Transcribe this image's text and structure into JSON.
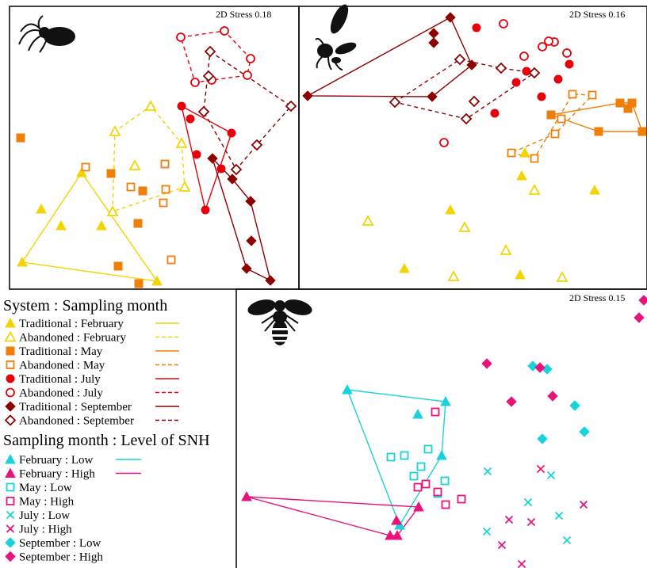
{
  "colors": {
    "february_system": "#F2D500",
    "may_system": "#F07F0A",
    "july_system": "#E8000B",
    "september_system": "#8B0000",
    "low_snh": "#19D2DC",
    "high_snh": "#E8147C"
  },
  "icons": [
    "spider-icon",
    "wasp-icon",
    "bee-icon"
  ],
  "chart_data": [
    {
      "type": "scatter",
      "panel": "spiders",
      "annotation": "2D Stress 0.18",
      "series": [
        {
          "key": "trad_feb",
          "points": [
            [
              28,
              331
            ],
            [
              52,
              264
            ],
            [
              77,
              285
            ],
            [
              103,
              218
            ],
            [
              128,
              285
            ],
            [
              198,
              355
            ]
          ],
          "hull": [
            [
              28,
              331
            ],
            [
              103,
              218
            ],
            [
              198,
              355
            ]
          ]
        },
        {
          "key": "aband_feb",
          "points": [
            [
              142,
              267
            ],
            [
              145,
              166
            ],
            [
              170,
              209
            ],
            [
              190,
              134
            ],
            [
              229,
              181
            ],
            [
              233,
              236
            ]
          ],
          "hull": [
            [
              142,
              267
            ],
            [
              145,
              166
            ],
            [
              190,
              134
            ],
            [
              229,
              181
            ],
            [
              233,
              236
            ]
          ]
        },
        {
          "key": "trad_may",
          "points": [
            [
              26,
              174
            ],
            [
              140,
              219
            ],
            [
              180,
              241
            ],
            [
              174,
              282
            ],
            [
              149,
              336
            ],
            [
              175,
              358
            ]
          ],
          "hull": []
        },
        {
          "key": "aband_may",
          "points": [
            [
              108,
              211
            ],
            [
              165,
              236
            ],
            [
              208,
              207
            ],
            [
              209,
              239
            ],
            [
              206,
              256
            ],
            [
              216,
              328
            ]
          ],
          "hull": []
        },
        {
          "key": "trad_jul",
          "points": [
            [
              229,
              134
            ],
            [
              240,
              150
            ],
            [
              248,
              195
            ],
            [
              259,
              265
            ],
            [
              279,
              213
            ],
            [
              292,
              168
            ]
          ],
          "hull": [
            [
              229,
              134
            ],
            [
              259,
              265
            ],
            [
              292,
              168
            ]
          ]
        },
        {
          "key": "aband_jul",
          "points": [
            [
              228,
              47
            ],
            [
              283,
              39
            ],
            [
              316,
              74
            ],
            [
              312,
              95
            ],
            [
              246,
              104
            ],
            [
              267,
              101
            ]
          ],
          "hull": [
            [
              228,
              47
            ],
            [
              283,
              39
            ],
            [
              316,
              74
            ],
            [
              312,
              95
            ],
            [
              246,
              104
            ]
          ]
        },
        {
          "key": "trad_sep",
          "points": [
            [
              268,
              200
            ],
            [
              293,
              226
            ],
            [
              316,
              254
            ],
            [
              317,
              304
            ],
            [
              311,
              339
            ],
            [
              341,
              354
            ]
          ],
          "hull": [
            [
              268,
              200
            ],
            [
              293,
              226
            ],
            [
              316,
              254
            ],
            [
              341,
              354
            ],
            [
              311,
              339
            ]
          ]
        },
        {
          "key": "aband_sep",
          "points": [
            [
              265,
              65
            ],
            [
              367,
              134
            ],
            [
              324,
              183
            ],
            [
              298,
              214
            ],
            [
              257,
              141
            ],
            [
              263,
              96
            ]
          ],
          "hull": [
            [
              265,
              65
            ],
            [
              367,
              134
            ],
            [
              324,
              183
            ],
            [
              298,
              214
            ],
            [
              257,
              141
            ]
          ]
        }
      ]
    },
    {
      "type": "scatter",
      "panel": "wasps",
      "annotation": "2D Stress 0.16",
      "series": [
        {
          "key": "trad_feb",
          "points": [
            [
              658,
              222
            ],
            [
              662,
              193
            ],
            [
              750,
              240
            ],
            [
              568,
              265
            ],
            [
              510,
              339
            ],
            [
              656,
              347
            ]
          ],
          "hull": []
        },
        {
          "key": "aband_feb",
          "points": [
            [
              464,
              279
            ],
            [
              586,
              287
            ],
            [
              674,
              240
            ],
            [
              638,
              316
            ],
            [
              572,
              349
            ],
            [
              709,
              350
            ]
          ],
          "hull": []
        },
        {
          "key": "trad_may",
          "points": [
            [
              695,
              145
            ],
            [
              782,
              130
            ],
            [
              797,
              130
            ],
            [
              792,
              137
            ],
            [
              810,
              166
            ],
            [
              755,
              166
            ]
          ],
          "hull": [
            [
              695,
              145
            ],
            [
              782,
              130
            ],
            [
              797,
              130
            ],
            [
              810,
              166
            ],
            [
              755,
              166
            ]
          ]
        },
        {
          "key": "aband_may",
          "points": [
            [
              645,
              193
            ],
            [
              674,
              200
            ],
            [
              722,
              119
            ],
            [
              747,
              120
            ],
            [
              700,
              169
            ],
            [
              708,
              150
            ]
          ],
          "hull": [
            [
              645,
              193
            ],
            [
              674,
              200
            ],
            [
              722,
              119
            ],
            [
              747,
              120
            ],
            [
              700,
              169
            ]
          ]
        },
        {
          "key": "trad_jul",
          "points": [
            [
              601,
              35
            ],
            [
              651,
              104
            ],
            [
              664,
              90
            ],
            [
              683,
              122
            ],
            [
              704,
              100
            ],
            [
              718,
              81
            ],
            [
              624,
              143
            ]
          ],
          "hull": []
        },
        {
          "key": "aband_jul",
          "points": [
            [
              560,
              180
            ],
            [
              635,
              30
            ],
            [
              661,
              71
            ],
            [
              684,
              59
            ],
            [
              699,
              53
            ],
            [
              715,
              67
            ],
            [
              692,
              52
            ]
          ],
          "hull": []
        },
        {
          "key": "trad_sep",
          "points": [
            [
              388,
              121
            ],
            [
              568,
              22
            ],
            [
              547,
              42
            ],
            [
              547,
              54
            ],
            [
              595,
              82
            ],
            [
              545,
              122
            ]
          ],
          "hull": [
            [
              388,
              121
            ],
            [
              568,
              22
            ],
            [
              595,
              82
            ],
            [
              545,
              122
            ]
          ]
        },
        {
          "key": "aband_sep",
          "points": [
            [
              498,
              129
            ],
            [
              580,
              75
            ],
            [
              632,
              86
            ],
            [
              674,
              92
            ],
            [
              598,
              128
            ],
            [
              588,
              150
            ]
          ],
          "hull": [
            [
              498,
              129
            ],
            [
              580,
              75
            ],
            [
              632,
              86
            ],
            [
              674,
              92
            ],
            [
              588,
              150
            ]
          ]
        }
      ]
    },
    {
      "type": "scatter",
      "panel": "bees",
      "annotation": "2D Stress 0.15",
      "series": [
        {
          "key": "feb_low",
          "points": [
            [
              438,
              492
            ],
            [
              562,
              507
            ],
            [
              527,
              523
            ],
            [
              557,
              575
            ],
            [
              504,
              663
            ]
          ],
          "hull": [
            [
              438,
              492
            ],
            [
              562,
              507
            ],
            [
              557,
              575
            ],
            [
              504,
              663
            ]
          ]
        },
        {
          "key": "feb_high",
          "points": [
            [
              311,
              627
            ],
            [
              492,
              676
            ],
            [
              501,
              676
            ],
            [
              500,
              657
            ],
            [
              528,
              640
            ]
          ],
          "hull": [
            [
              311,
              627
            ],
            [
              492,
              676
            ],
            [
              501,
              676
            ],
            [
              528,
              640
            ]
          ]
        },
        {
          "key": "may_low",
          "points": [
            [
              493,
              577
            ],
            [
              510,
              575
            ],
            [
              540,
              567
            ],
            [
              531,
              589
            ],
            [
              522,
              601
            ],
            [
              561,
              607
            ],
            [
              552,
              623
            ]
          ],
          "hull": []
        },
        {
          "key": "may_high",
          "points": [
            [
              549,
              520
            ],
            [
              537,
              611
            ],
            [
              527,
              615
            ],
            [
              552,
              621
            ],
            [
              562,
              637
            ],
            [
              582,
              630
            ]
          ],
          "hull": []
        },
        {
          "key": "jul_low",
          "points": [
            [
              615,
              595
            ],
            [
              695,
              600
            ],
            [
              666,
              634
            ],
            [
              705,
              651
            ],
            [
              614,
              671
            ],
            [
              715,
              682
            ]
          ],
          "hull": []
        },
        {
          "key": "jul_high",
          "points": [
            [
              682,
              592
            ],
            [
              736,
              637
            ],
            [
              642,
              656
            ],
            [
              670,
              659
            ],
            [
              633,
              688
            ],
            [
              658,
              712
            ]
          ],
          "hull": []
        },
        {
          "key": "sep_low",
          "points": [
            [
              672,
              462
            ],
            [
              690,
              466
            ],
            [
              725,
              512
            ],
            [
              684,
              554
            ],
            [
              737,
              545
            ]
          ],
          "hull": []
        },
        {
          "key": "sep_high",
          "points": [
            [
              812,
              379
            ],
            [
              806,
              401
            ],
            [
              614,
              459
            ],
            [
              681,
              464
            ],
            [
              697,
              500
            ],
            [
              645,
              507
            ]
          ],
          "hull": []
        }
      ]
    }
  ],
  "legend_system": {
    "title": "System : Sampling month",
    "entries": [
      {
        "label": "Traditional : February",
        "marker": "triangle",
        "filled": true,
        "color": "#F2D500",
        "dash": false
      },
      {
        "label": "Abandoned : February",
        "marker": "triangle",
        "filled": false,
        "color": "#F2D500",
        "dash": true
      },
      {
        "label": "Traditional : May",
        "marker": "square",
        "filled": true,
        "color": "#F07F0A",
        "dash": false
      },
      {
        "label": "Abandoned : May",
        "marker": "square",
        "filled": false,
        "color": "#F07F0A",
        "dash": true
      },
      {
        "label": "Traditional : July",
        "marker": "circle",
        "filled": true,
        "color": "#E8000B",
        "dash": false
      },
      {
        "label": "Abandoned : July",
        "marker": "circle",
        "filled": false,
        "color": "#E8000B",
        "dash": true
      },
      {
        "label": "Traditional : September",
        "marker": "diamond",
        "filled": true,
        "color": "#8B0000",
        "dash": false
      },
      {
        "label": "Abandoned : September",
        "marker": "diamond",
        "filled": false,
        "color": "#8B0000",
        "dash": true
      }
    ]
  },
  "legend_snh": {
    "title": "Sampling month : Level of SNH",
    "entries": [
      {
        "label": "February : Low",
        "marker": "triangle",
        "filled": true,
        "color": "#19D2DC",
        "line": true
      },
      {
        "label": "February : High",
        "marker": "triangle",
        "filled": true,
        "color": "#E8147C",
        "line": true
      },
      {
        "label": "May : Low",
        "marker": "square",
        "filled": false,
        "color": "#19D2DC",
        "line": false
      },
      {
        "label": "May : High",
        "marker": "square",
        "filled": false,
        "color": "#E8147C",
        "line": false
      },
      {
        "label": "July : Low",
        "marker": "cross",
        "filled": false,
        "color": "#19D2DC",
        "line": false
      },
      {
        "label": "July : High",
        "marker": "cross",
        "filled": false,
        "color": "#E8147C",
        "line": false
      },
      {
        "label": "September : Low",
        "marker": "diamond",
        "filled": true,
        "color": "#19D2DC",
        "line": false
      },
      {
        "label": "September : High",
        "marker": "diamond",
        "filled": true,
        "color": "#E8147C",
        "line": false
      }
    ]
  }
}
